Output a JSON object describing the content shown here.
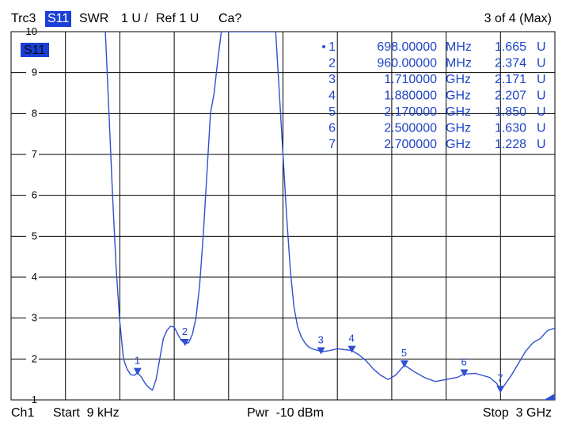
{
  "header": {
    "trace": "Trc3",
    "parameter": "S11",
    "format": "SWR",
    "scale": "1 U /",
    "reference": "Ref 1 U",
    "calibration": "Ca?",
    "page_indicator": "3 of 4 (Max)"
  },
  "footer": {
    "channel": "Ch1",
    "start": "Start  9 kHz",
    "power": "Pwr  -10 dBm",
    "stop": "Stop  3 GHz"
  },
  "colors": {
    "trace": "#2e4fd0",
    "parameter_box": "#1a3fd8",
    "grid": "#000000"
  },
  "chart_data": {
    "type": "line",
    "title": "",
    "xlabel": "",
    "ylabel": "",
    "xlim": [
      9e-06,
      3.0
    ],
    "x_unit": "GHz",
    "ylim": [
      1,
      10
    ],
    "y_ticks": [
      "1",
      "2",
      "3",
      "4",
      "5",
      "6",
      "7",
      "8",
      "9",
      "10"
    ],
    "grid": true,
    "trace_label": "S11",
    "series": [
      {
        "x": [
          0.52,
          0.54,
          0.56,
          0.58,
          0.6,
          0.62,
          0.64,
          0.66,
          0.68,
          0.698,
          0.72,
          0.74,
          0.76,
          0.78,
          0.8,
          0.82,
          0.84,
          0.86,
          0.88,
          0.9,
          0.92,
          0.94,
          0.96,
          0.98,
          1.0,
          1.02,
          1.04,
          1.06,
          1.08,
          1.1,
          1.12,
          1.14,
          1.16,
          1.17,
          1.18,
          1.46,
          1.48,
          1.5,
          1.52,
          1.54,
          1.56,
          1.58,
          1.6,
          1.62,
          1.64,
          1.66,
          1.7,
          1.71,
          1.75,
          1.8,
          1.88,
          1.92,
          1.96,
          2.0,
          2.04,
          2.08,
          2.12,
          2.17,
          2.22,
          2.28,
          2.34,
          2.4,
          2.46,
          2.5,
          2.56,
          2.6,
          2.64,
          2.68,
          2.7,
          2.72,
          2.76,
          2.8,
          2.84,
          2.88,
          2.92,
          2.96,
          3.0
        ],
        "values": [
          10.0,
          8.0,
          6.0,
          4.2,
          2.9,
          2.0,
          1.75,
          1.62,
          1.6,
          1.665,
          1.55,
          1.4,
          1.3,
          1.24,
          1.5,
          2.0,
          2.5,
          2.7,
          2.8,
          2.78,
          2.6,
          2.45,
          2.374,
          2.4,
          2.6,
          3.0,
          3.8,
          5.0,
          6.5,
          8.0,
          8.5,
          9.3,
          10.0,
          10.0,
          10.0,
          10.0,
          8.5,
          7.0,
          5.5,
          4.2,
          3.3,
          2.8,
          2.55,
          2.4,
          2.3,
          2.25,
          2.2,
          2.171,
          2.2,
          2.25,
          2.207,
          2.1,
          1.95,
          1.75,
          1.6,
          1.5,
          1.6,
          1.85,
          1.7,
          1.55,
          1.45,
          1.5,
          1.55,
          1.63,
          1.65,
          1.6,
          1.55,
          1.4,
          1.228,
          1.35,
          1.6,
          1.9,
          2.2,
          2.4,
          2.5,
          2.7,
          2.75
        ]
      }
    ],
    "markers": [
      {
        "id": "1",
        "active": true,
        "freq": "698.00000",
        "unit": "MHz",
        "value": "1.665",
        "vunit": "U",
        "x": 0.698,
        "y": 1.665
      },
      {
        "id": "2",
        "active": false,
        "freq": "960.00000",
        "unit": "MHz",
        "value": "2.374",
        "vunit": "U",
        "x": 0.96,
        "y": 2.374
      },
      {
        "id": "3",
        "active": false,
        "freq": "1.710000",
        "unit": "GHz",
        "value": "2.171",
        "vunit": "U",
        "x": 1.71,
        "y": 2.171
      },
      {
        "id": "4",
        "active": false,
        "freq": "1.880000",
        "unit": "GHz",
        "value": "2.207",
        "vunit": "U",
        "x": 1.88,
        "y": 2.207
      },
      {
        "id": "5",
        "active": false,
        "freq": "2.170000",
        "unit": "GHz",
        "value": "1.850",
        "vunit": "U",
        "x": 2.17,
        "y": 1.85
      },
      {
        "id": "6",
        "active": false,
        "freq": "2.500000",
        "unit": "GHz",
        "value": "1.630",
        "vunit": "U",
        "x": 2.5,
        "y": 1.63
      },
      {
        "id": "7",
        "active": false,
        "freq": "2.700000",
        "unit": "GHz",
        "value": "1.228",
        "vunit": "U",
        "x": 2.7,
        "y": 1.228
      }
    ]
  }
}
